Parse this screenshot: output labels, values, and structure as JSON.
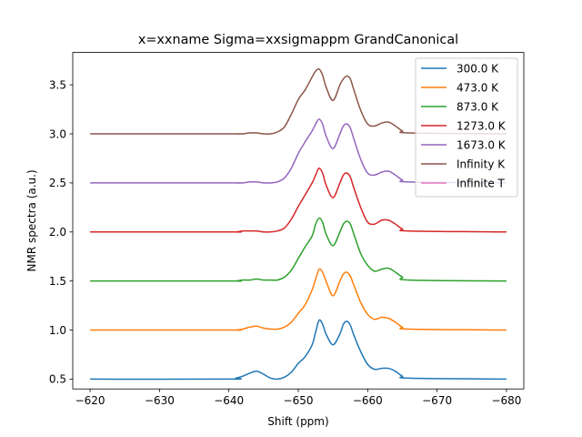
{
  "chart_data": {
    "type": "line",
    "title": "x=xxname  Sigma=xxsigmappm  GrandCanonical",
    "xlabel": "Shift (ppm)",
    "ylabel": "NMR spectra (a.u.)",
    "xlim": [
      -617.5,
      -682.5
    ],
    "ylim": [
      0.4,
      3.83
    ],
    "x_reversed": true,
    "xticks": [
      -620,
      -630,
      -640,
      -650,
      -660,
      -670,
      -680
    ],
    "xtick_labels": [
      "−620",
      "−630",
      "−640",
      "−650",
      "−660",
      "−670",
      "−680"
    ],
    "yticks": [
      0.5,
      1.0,
      1.5,
      2.0,
      2.5,
      3.0,
      3.5
    ],
    "ytick_labels": [
      "0.5",
      "1.0",
      "1.5",
      "2.0",
      "2.5",
      "3.0",
      "3.5"
    ],
    "grid": false,
    "legend_position": "upper right",
    "series": [
      {
        "name": "300.0 K",
        "color": "#1f77b4",
        "baseline": 0.5,
        "x": [
          -620,
          -640,
          -641,
          -642,
          -643,
          -644,
          -645,
          -646,
          -647,
          -648,
          -649,
          -650,
          -651,
          -652,
          -652.5,
          -653,
          -653.5,
          -654,
          -655,
          -656,
          -656.5,
          -657,
          -657.5,
          -658,
          -659,
          -660,
          -661,
          -662,
          -663,
          -664,
          -665,
          -666,
          -680
        ],
        "y": [
          0.5,
          0.5,
          0.51,
          0.53,
          0.56,
          0.58,
          0.55,
          0.51,
          0.5,
          0.52,
          0.57,
          0.66,
          0.73,
          0.85,
          0.98,
          1.1,
          1.06,
          0.96,
          0.85,
          0.96,
          1.06,
          1.09,
          1.05,
          0.95,
          0.78,
          0.65,
          0.6,
          0.61,
          0.61,
          0.58,
          0.53,
          0.51,
          0.5
        ]
      },
      {
        "name": "473.0 K",
        "color": "#ff7f0e",
        "baseline": 1.0,
        "x": [
          -620,
          -640,
          -641,
          -642,
          -643,
          -644,
          -645,
          -646,
          -647,
          -648,
          -649,
          -650,
          -651,
          -652,
          -652.5,
          -653,
          -653.5,
          -654,
          -655,
          -656,
          -656.5,
          -657,
          -657.5,
          -658,
          -659,
          -660,
          -661,
          -662,
          -663,
          -664,
          -665,
          -666,
          -680
        ],
        "y": [
          1.0,
          1.0,
          1.0,
          1.01,
          1.03,
          1.04,
          1.02,
          1.01,
          1.01,
          1.03,
          1.08,
          1.17,
          1.26,
          1.41,
          1.52,
          1.62,
          1.59,
          1.5,
          1.35,
          1.5,
          1.57,
          1.59,
          1.55,
          1.46,
          1.28,
          1.16,
          1.11,
          1.13,
          1.12,
          1.08,
          1.03,
          1.01,
          1.0
        ]
      },
      {
        "name": "873.0 K",
        "color": "#2ca02c",
        "baseline": 1.5,
        "x": [
          -620,
          -640,
          -641,
          -642,
          -643,
          -644,
          -645,
          -646,
          -647,
          -648,
          -649,
          -650,
          -651,
          -652,
          -652.5,
          -653,
          -653.5,
          -654,
          -655,
          -656,
          -656.5,
          -657,
          -657.5,
          -658,
          -659,
          -660,
          -661,
          -662,
          -663,
          -664,
          -665,
          -666,
          -680
        ],
        "y": [
          1.5,
          1.5,
          1.5,
          1.51,
          1.51,
          1.52,
          1.51,
          1.51,
          1.51,
          1.54,
          1.61,
          1.73,
          1.85,
          1.96,
          2.08,
          2.14,
          2.1,
          1.98,
          1.86,
          2.0,
          2.08,
          2.11,
          2.08,
          1.98,
          1.78,
          1.66,
          1.6,
          1.62,
          1.63,
          1.59,
          1.54,
          1.51,
          1.5
        ]
      },
      {
        "name": "1273.0 K",
        "color": "#d62728",
        "baseline": 2.0,
        "x": [
          -620,
          -640,
          -641,
          -642,
          -643,
          -644,
          -645,
          -646,
          -647,
          -648,
          -649,
          -650,
          -651,
          -652,
          -652.5,
          -653,
          -653.5,
          -654,
          -655,
          -656,
          -656.5,
          -657,
          -657.5,
          -658,
          -659,
          -660,
          -661,
          -662,
          -663,
          -664,
          -665,
          -666,
          -680
        ],
        "y": [
          2.0,
          2.0,
          2.0,
          2.01,
          2.01,
          2.01,
          2.0,
          2.0,
          2.01,
          2.04,
          2.13,
          2.26,
          2.38,
          2.5,
          2.58,
          2.65,
          2.6,
          2.48,
          2.35,
          2.5,
          2.58,
          2.6,
          2.56,
          2.45,
          2.25,
          2.1,
          2.08,
          2.12,
          2.12,
          2.08,
          2.03,
          2.01,
          2.0
        ]
      },
      {
        "name": "1673.0 K",
        "color": "#9467bd",
        "baseline": 2.5,
        "x": [
          -620,
          -640,
          -641,
          -642,
          -643,
          -644,
          -645,
          -646,
          -647,
          -648,
          -649,
          -650,
          -651,
          -652,
          -652.5,
          -653,
          -653.5,
          -654,
          -655,
          -656,
          -656.5,
          -657,
          -657.5,
          -658,
          -659,
          -660,
          -661,
          -662,
          -663,
          -664,
          -665,
          -666,
          -680
        ],
        "y": [
          2.5,
          2.5,
          2.5,
          2.5,
          2.51,
          2.51,
          2.5,
          2.5,
          2.51,
          2.55,
          2.65,
          2.8,
          2.92,
          3.03,
          3.1,
          3.15,
          3.1,
          2.98,
          2.85,
          3.0,
          3.08,
          3.1,
          3.06,
          2.95,
          2.74,
          2.6,
          2.58,
          2.61,
          2.62,
          2.58,
          2.53,
          2.51,
          2.5
        ]
      },
      {
        "name": "Infinity K",
        "color": "#8c564b",
        "baseline": 3.0,
        "x": [
          -620,
          -640,
          -641,
          -642,
          -643,
          -644,
          -645,
          -646,
          -647,
          -648,
          -649,
          -650,
          -651,
          -652,
          -652.5,
          -653,
          -653.5,
          -654,
          -655,
          -656,
          -656.5,
          -657,
          -657.5,
          -658,
          -659,
          -660,
          -661,
          -662,
          -663,
          -664,
          -665,
          -666,
          -680
        ],
        "y": [
          3.0,
          3.0,
          3.0,
          3.0,
          3.01,
          3.01,
          3.0,
          3.0,
          3.02,
          3.07,
          3.2,
          3.35,
          3.45,
          3.58,
          3.64,
          3.66,
          3.6,
          3.48,
          3.34,
          3.5,
          3.56,
          3.59,
          3.56,
          3.45,
          3.24,
          3.1,
          3.08,
          3.11,
          3.12,
          3.08,
          3.03,
          3.01,
          3.0
        ]
      },
      {
        "name": "Infinite T",
        "color": "#e377c2",
        "baseline": null,
        "x": [],
        "y": []
      }
    ]
  }
}
